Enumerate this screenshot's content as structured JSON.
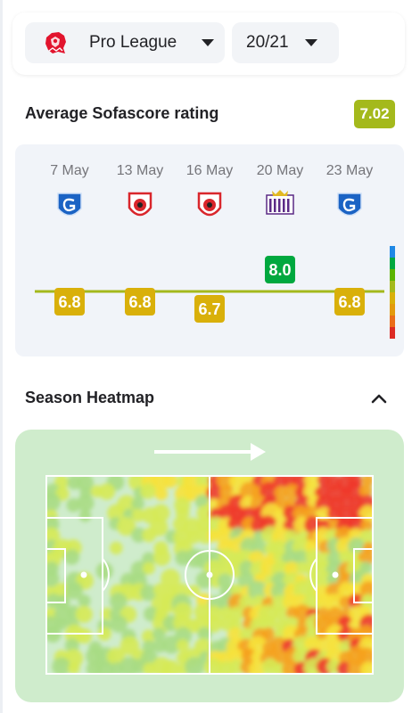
{
  "selectors": {
    "league": {
      "name": "Pro League",
      "icon": "pro-league-lion-logo"
    },
    "season": {
      "name": "20/21"
    }
  },
  "rating": {
    "title": "Average Sofascore rating",
    "average": "7.02",
    "average_color": "#a4b91c"
  },
  "matches": [
    {
      "date": "7 May",
      "opponent_icon": "genk-crest",
      "rating": "6.8"
    },
    {
      "date": "13 May",
      "opponent_icon": "antwerp-crest",
      "rating": "6.8"
    },
    {
      "date": "16 May",
      "opponent_icon": "antwerp-crest",
      "rating": "6.7"
    },
    {
      "date": "20 May",
      "opponent_icon": "anderlecht-crest",
      "rating": "8.0"
    },
    {
      "date": "23 May",
      "opponent_icon": "genk-crest",
      "rating": "6.8"
    }
  ],
  "chart_data": {
    "type": "line",
    "x": [
      "7 May",
      "13 May",
      "16 May",
      "20 May",
      "23 May"
    ],
    "series": [
      {
        "values": [
          6.8,
          6.8,
          6.7,
          8.0,
          6.8
        ]
      }
    ],
    "reference_line": 7.02,
    "scale_colors": [
      "#1e88e5",
      "#00a83f",
      "#5cb400",
      "#a4b91c",
      "#d9b00a",
      "#e39a0c",
      "#ea6d19",
      "#dc2b24"
    ]
  },
  "heatmap": {
    "title": "Season Heatmap",
    "direction": "attack-right-arrow",
    "collapse_icon": "chevron-up-icon"
  }
}
